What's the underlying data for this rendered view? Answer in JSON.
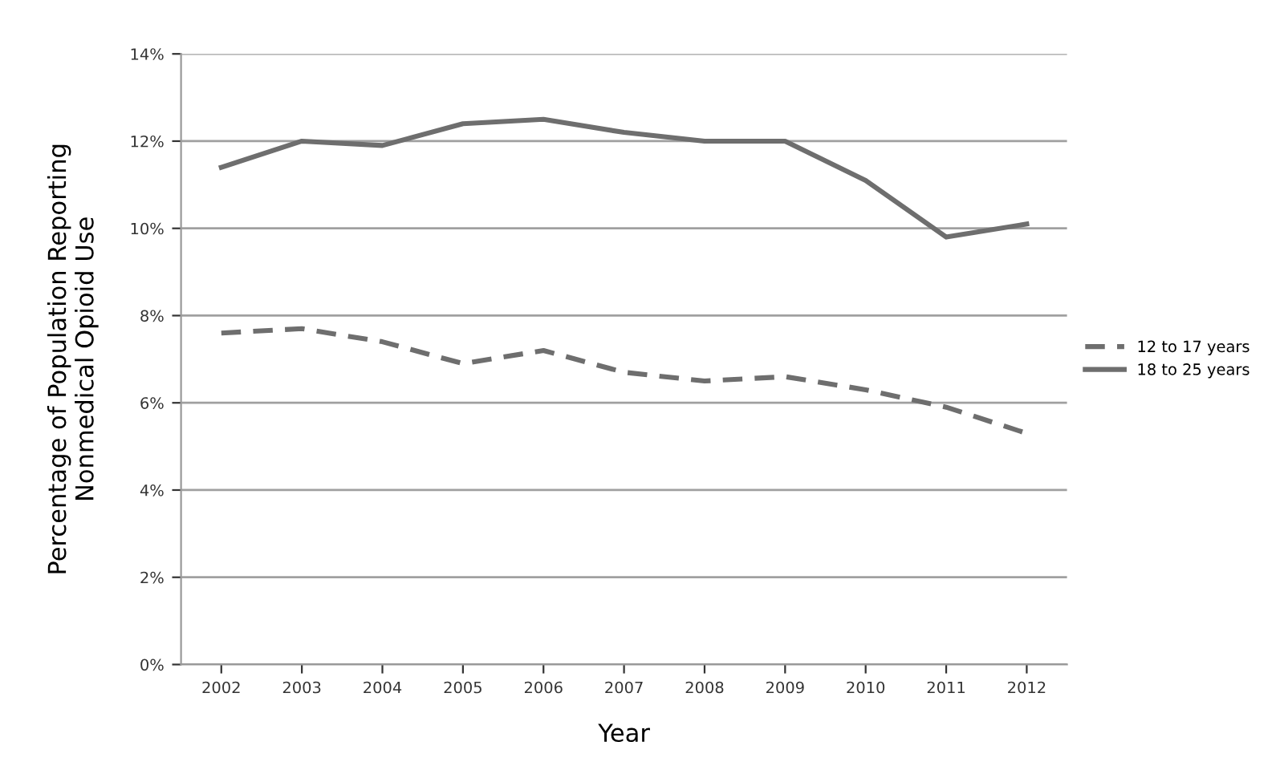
{
  "chart_data": {
    "type": "line",
    "xlabel": "Year",
    "ylabel": "Percentage of Population Reporting\nNonmedical Opioid Use",
    "categories": [
      "2002",
      "2003",
      "2004",
      "2005",
      "2006",
      "2007",
      "2008",
      "2009",
      "2010",
      "2011",
      "2012"
    ],
    "series": [
      {
        "name": "12 to 17 years",
        "color": "#6e6e6e",
        "line_style": "dashed",
        "values": [
          7.6,
          7.7,
          7.4,
          6.9,
          7.2,
          6.7,
          6.5,
          6.6,
          6.3,
          5.9,
          5.3
        ]
      },
      {
        "name": "18 to 25 years",
        "color": "#6e6e6e",
        "line_style": "solid",
        "values": [
          11.4,
          12.0,
          11.9,
          12.4,
          12.5,
          12.2,
          12.0,
          12.0,
          11.1,
          9.8,
          10.1
        ]
      }
    ],
    "ylim": [
      0,
      14
    ],
    "yticks": [
      {
        "value": 0,
        "label": "0%"
      },
      {
        "value": 2,
        "label": "2%"
      },
      {
        "value": 4,
        "label": "4%"
      },
      {
        "value": 6,
        "label": "6%"
      },
      {
        "value": 8,
        "label": "8%"
      },
      {
        "value": 10,
        "label": "10%"
      },
      {
        "value": 12,
        "label": "12%"
      },
      {
        "value": 14,
        "label": "14%"
      }
    ],
    "grid": "y",
    "legend": "right",
    "marker": "none"
  }
}
